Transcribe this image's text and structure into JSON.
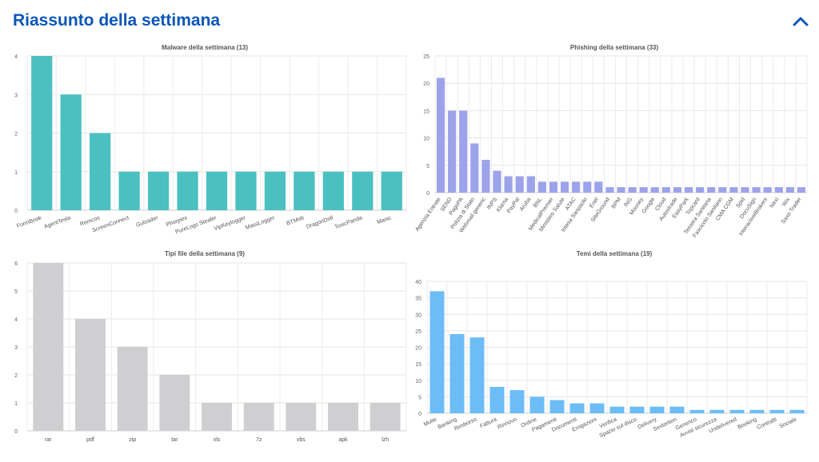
{
  "header": {
    "title": "Riassunto della settimana",
    "collapse_icon": "chevron-up-icon",
    "accent_color": "#0b56b8"
  },
  "chart_data": [
    {
      "id": "malware",
      "type": "bar",
      "title": "Malware della settimana (13)",
      "color": "#4bc0c0",
      "categories": [
        "FormBook",
        "AgentTesla",
        "Remcos",
        "ScreenConnect",
        "Guloader",
        "Phorpiex",
        "PureLogs Stealer",
        "VipKeylogger",
        "MassLogger",
        "BTMob",
        "DragonDoll",
        "ToxicPanda",
        "Manic"
      ],
      "values": [
        4,
        3,
        2,
        1,
        1,
        1,
        1,
        1,
        1,
        1,
        1,
        1,
        1
      ],
      "ylim": [
        0,
        4
      ],
      "yticks": [
        0,
        1,
        2,
        3,
        4
      ],
      "grid": true,
      "xlabel_rotation": -20
    },
    {
      "id": "phishing",
      "type": "bar",
      "title": "Phishing della settimana (33)",
      "color": "#9ca3ea",
      "categories": [
        "Agenzia Entrate",
        "SEND",
        "PagoPA",
        "Polizia di Stato",
        "Webmail generic",
        "INPS",
        "Klarna",
        "PayPal",
        "Aruba",
        "BNL",
        "MedicalPremier",
        "Ministero Salute",
        "ATAC",
        "Intesa Sanpaolo",
        "Enel",
        "SiteGround",
        "BPM",
        "ING",
        "Mooney",
        "Google",
        "Cloud",
        "Autostrade",
        "EasyPark",
        "Topcard",
        "Tessera Sanitaria",
        "Fascicolo Sanitario",
        "CMA CGM",
        "Spid",
        "DocuSign",
        "InteractiveBrokers",
        "Nexi",
        "Wix",
        "Saxo Trader"
      ],
      "values": [
        21,
        15,
        15,
        9,
        6,
        4,
        3,
        3,
        3,
        2,
        2,
        2,
        2,
        2,
        2,
        1,
        1,
        1,
        1,
        1,
        1,
        1,
        1,
        1,
        1,
        1,
        1,
        1,
        1,
        1,
        1,
        1,
        1
      ],
      "ylim": [
        0,
        25
      ],
      "yticks": [
        0,
        5,
        10,
        15,
        20,
        25
      ],
      "grid": true,
      "xlabel_rotation": -55
    },
    {
      "id": "tipi-file",
      "type": "bar",
      "title": "Tipi file della settimana (9)",
      "color": "#cfcfd1",
      "categories": [
        "rar",
        "pdf",
        "zip",
        "tar",
        "xls",
        "7z",
        "vbs",
        "apk",
        "lzh"
      ],
      "values": [
        6,
        4,
        3,
        2,
        1,
        1,
        1,
        1,
        1
      ],
      "ylim": [
        0,
        6
      ],
      "yticks": [
        0,
        1,
        2,
        3,
        4,
        5,
        6
      ],
      "grid": true,
      "xlabel_rotation": 0
    },
    {
      "id": "temi",
      "type": "bar",
      "title": "Temi della settimana (19)",
      "color": "#6cbdf6",
      "categories": [
        "Multe",
        "Banking",
        "Rimborso",
        "Fattura",
        "Rinnovo",
        "Ordine",
        "Pagamenti",
        "Documenti",
        "Erogazioni",
        "Verifica",
        "Spazio sul disco",
        "Delivery",
        "Sextortion",
        "Generico",
        "Avvisi sicurezza",
        "Undelivered",
        "Booking",
        "Contratti",
        "Sociale"
      ],
      "values": [
        37,
        24,
        23,
        8,
        7,
        5,
        4,
        3,
        3,
        2,
        2,
        2,
        2,
        1,
        1,
        1,
        1,
        1,
        1
      ],
      "ylim": [
        0,
        40
      ],
      "yticks": [
        0,
        5,
        10,
        15,
        20,
        25,
        30,
        35,
        40
      ],
      "grid": true,
      "xlabel_rotation": -25
    }
  ]
}
